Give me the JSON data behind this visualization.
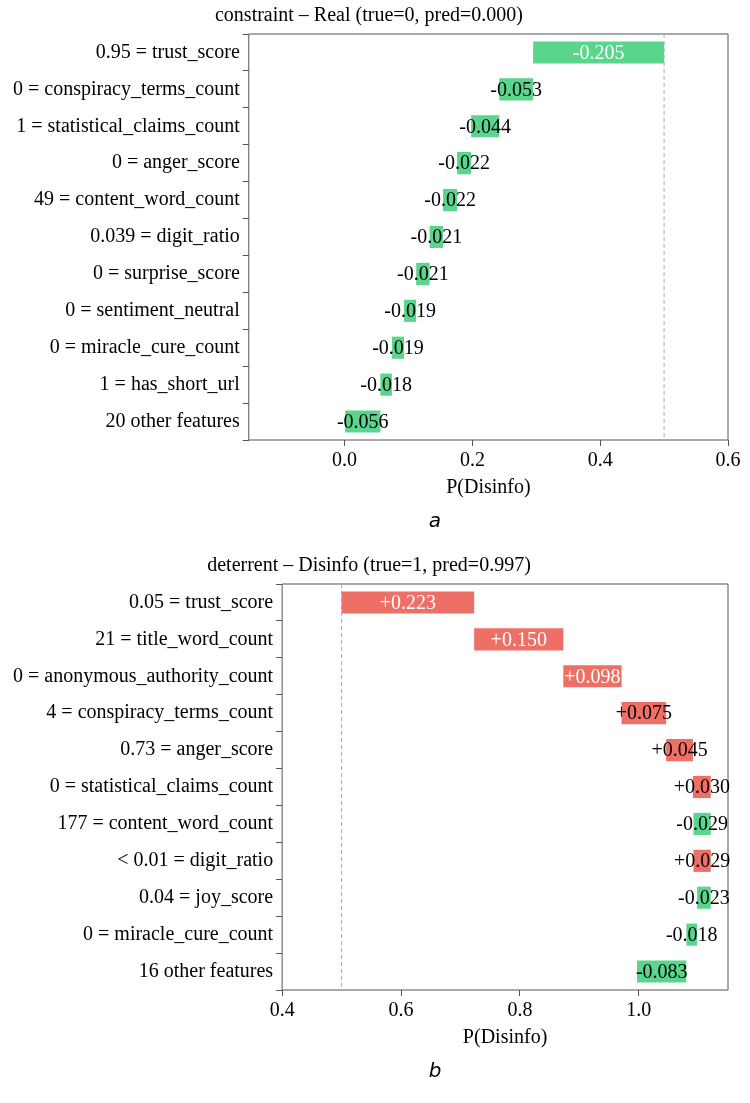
{
  "chart_data": [
    {
      "type": "bar",
      "orientation": "horizontal",
      "title": "constraint – Real (true=0, pred=0.000)",
      "xlabel": "P(Disinfo)",
      "categories": [
        "0.95 = trust_score",
        "0 = conspiracy_terms_count",
        "1 = statistical_claims_count",
        "0 = anger_score",
        "49 = content_word_count",
        "0.039 = digit_ratio",
        "0 = surprise_score",
        "0 = sentiment_neutral",
        "0 = miracle_cure_count",
        "1 = has_short_url",
        "20 other features"
      ],
      "values": [
        -0.205,
        -0.053,
        -0.044,
        -0.022,
        -0.022,
        -0.021,
        -0.021,
        -0.019,
        -0.019,
        -0.018,
        -0.056
      ],
      "base": [
        0.5,
        0.295,
        0.242,
        0.198,
        0.176,
        0.154,
        0.133,
        0.112,
        0.093,
        0.074,
        0.056
      ],
      "colors": [
        "#5ad68c",
        "#5ad68c",
        "#5ad68c",
        "#5ad68c",
        "#5ad68c",
        "#5ad68c",
        "#5ad68c",
        "#5ad68c",
        "#5ad68c",
        "#5ad68c",
        "#5ad68c"
      ],
      "value_labels": [
        "-0.205",
        "-0.053",
        "-0.044",
        "-0.022",
        "-0.022",
        "-0.021",
        "-0.021",
        "-0.019",
        "-0.019",
        "-0.018",
        "-0.056"
      ],
      "xlim": [
        -0.15,
        0.6
      ],
      "xticks": [
        {
          "value": 0,
          "label": "0.0"
        },
        0.2,
        0.4,
        0.6
      ],
      "ref_lines": [
        {
          "axis": "x",
          "value": 0.5,
          "color": "#aaaaaa",
          "line_style": "dashed"
        }
      ],
      "grid": false,
      "legend": false,
      "annotations": [
        "a"
      ]
    },
    {
      "type": "bar",
      "orientation": "horizontal",
      "title": "deterrent – Disinfo (true=1, pred=0.997)",
      "xlabel": "P(Disinfo)",
      "categories": [
        "0.05 = trust_score",
        "21 = title_word_count",
        "0 = anonymous_authority_count",
        "4 = conspiracy_terms_count",
        "0.73 = anger_score",
        "0 = statistical_claims_count",
        "177 = content_word_count",
        "< 0.01 = digit_ratio",
        "0.04 = joy_score",
        "0 = miracle_cure_count",
        "16 other features"
      ],
      "values": [
        0.223,
        0.15,
        0.098,
        0.075,
        0.045,
        0.03,
        -0.029,
        0.029,
        -0.023,
        -0.018,
        -0.083
      ],
      "base": [
        0.5,
        0.723,
        0.873,
        0.971,
        1.046,
        1.091,
        1.121,
        1.092,
        1.121,
        1.098,
        1.08
      ],
      "colors": [
        "#ed6f66",
        "#ed6f66",
        "#ed6f66",
        "#ed6f66",
        "#ed6f66",
        "#ed6f66",
        "#5ad68c",
        "#ed6f66",
        "#5ad68c",
        "#5ad68c",
        "#5ad68c"
      ],
      "value_labels": [
        "+0.223",
        "+0.150",
        "+0.098",
        "+0.075",
        "+0.045",
        "+0.030",
        "-0.029",
        "+0.029",
        "-0.023",
        "-0.018",
        "-0.083"
      ],
      "xlim": [
        0.4,
        1.15
      ],
      "xticks": [
        0.4,
        0.6,
        0.8,
        {
          "value": 1,
          "label": "1.0"
        }
      ],
      "ref_lines": [
        {
          "axis": "x",
          "value": 0.5,
          "color": "#aaaaaa",
          "line_style": "dashed"
        }
      ],
      "grid": false,
      "legend": false,
      "annotations": [
        "b"
      ]
    }
  ]
}
